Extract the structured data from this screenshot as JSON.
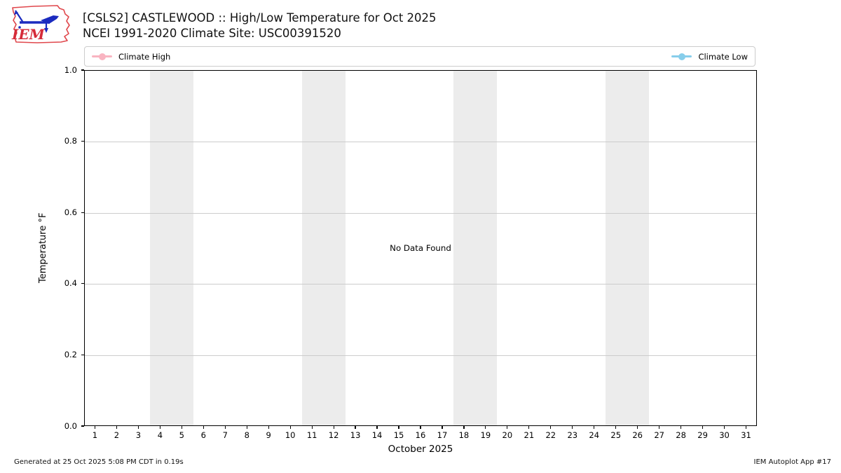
{
  "header": {
    "title_line1": "[CSLS2] CASTLEWOOD :: High/Low Temperature for Oct 2025",
    "title_line2": "NCEI 1991-2020 Climate Site: USC00391520",
    "logo_text": "IEM"
  },
  "legend": {
    "items": [
      {
        "label": "Climate High",
        "color": "#f9b4c1"
      },
      {
        "label": "Climate Low",
        "color": "#87ceeb"
      }
    ]
  },
  "chart_data": {
    "type": "line",
    "title": "[CSLS2] CASTLEWOOD :: High/Low Temperature for Oct 2025",
    "subtitle": "NCEI 1991-2020 Climate Site: USC00391520",
    "xlabel": "October 2025",
    "ylabel": "Temperature °F",
    "no_data_text": "No Data Found",
    "xlim": [
      0.5,
      31.5
    ],
    "ylim": [
      0.0,
      1.0
    ],
    "x_ticks": [
      1,
      2,
      3,
      4,
      5,
      6,
      7,
      8,
      9,
      10,
      11,
      12,
      13,
      14,
      15,
      16,
      17,
      18,
      19,
      20,
      21,
      22,
      23,
      24,
      25,
      26,
      27,
      28,
      29,
      30,
      31
    ],
    "y_ticks": [
      "1.0",
      "0.8",
      "0.6",
      "0.4",
      "0.2",
      "0.0"
    ],
    "grid": "horizontal",
    "gridline_color": "#cccccc",
    "weekend_band_color": "#ececec",
    "weekend_bands": [
      [
        3.5,
        5.5
      ],
      [
        10.5,
        12.5
      ],
      [
        17.5,
        19.5
      ],
      [
        24.5,
        26.5
      ]
    ],
    "legend_position": "top",
    "series": [
      {
        "name": "Climate High",
        "color": "#f9b4c1",
        "values": []
      },
      {
        "name": "Climate Low",
        "color": "#87ceeb",
        "values": []
      }
    ]
  },
  "footer": {
    "left": "Generated at 25 Oct 2025 5:08 PM CDT in 0.19s",
    "right": "IEM Autoplot App #17"
  }
}
